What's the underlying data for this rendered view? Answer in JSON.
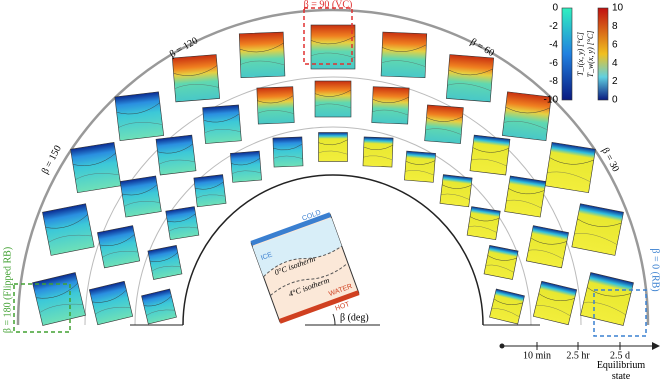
{
  "labels": {
    "beta_90": "β = 90 (VC)",
    "beta_120": "β = 120",
    "beta_60": "β = 60",
    "beta_150": "β = 150",
    "beta_30": "β = 30",
    "beta_180": "β = 180 (Flipped RB)",
    "beta_0": "β = 0 (RB)"
  },
  "colorbars": [
    {
      "label": "T_i(x, y) [°C]",
      "ticks": [
        0,
        -2,
        -4,
        -6,
        -8,
        -10
      ]
    },
    {
      "label": "T_w(x, y) [°C]",
      "ticks": [
        10,
        8,
        6,
        4,
        2,
        0
      ]
    }
  ],
  "inset": {
    "cold": "COLD",
    "ice": "ICE",
    "isotherm_0": "0°C isotherm",
    "isotherm_4": "4°C isotherm",
    "water": "WATER",
    "hot": "HOT",
    "angle": "β (deg)"
  },
  "time_axis": {
    "ticks": [
      "10 min",
      "2.5 hr",
      "2.5 d"
    ],
    "end_label": "Equilibrium state"
  }
}
